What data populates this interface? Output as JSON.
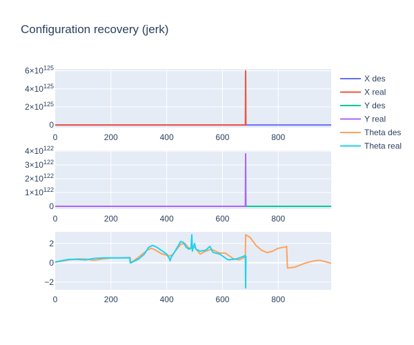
{
  "chart_data": {
    "title": "Configuration recovery (jerk)",
    "legend": {
      "placement": "right",
      "entries": [
        {
          "name": "X des",
          "color": "#636efa"
        },
        {
          "name": "X real",
          "color": "#ef553b"
        },
        {
          "name": "Y des",
          "color": "#00cc96"
        },
        {
          "name": "Y real",
          "color": "#ab63fa"
        },
        {
          "name": "Theta des",
          "color": "#ffa15a"
        },
        {
          "name": "Theta real",
          "color": "#19d3f3"
        }
      ]
    },
    "subplots": [
      {
        "type": "line",
        "xlim": [
          0,
          990
        ],
        "ylim": [
          -3e+124,
          6.2e+125
        ],
        "xticks": [
          0,
          200,
          400,
          600,
          800
        ],
        "yticks": [
          {
            "value": 0,
            "base": "0",
            "exp": ""
          },
          {
            "value": 2e+125,
            "base": "2×10",
            "exp": "125"
          },
          {
            "value": 4e+125,
            "base": "4×10",
            "exp": "125"
          },
          {
            "value": 6e+125,
            "base": "6×10",
            "exp": "125"
          }
        ],
        "grid": true,
        "series": [
          {
            "name": "X des",
            "color": "#636efa",
            "x": [
              0,
              990
            ],
            "y": [
              0,
              0
            ]
          },
          {
            "name": "X real",
            "color": "#ef553b",
            "x": [
              0,
              682,
              683,
              684
            ],
            "y": [
              0,
              0,
              6e+125,
              0
            ]
          }
        ]
      },
      {
        "type": "line",
        "xlim": [
          0,
          990
        ],
        "ylim": [
          -2e+121,
          4.05e+122
        ],
        "xticks": [
          0,
          200,
          400,
          600,
          800
        ],
        "yticks": [
          {
            "value": 0,
            "base": "0",
            "exp": ""
          },
          {
            "value": 1e+122,
            "base": "1×10",
            "exp": "122"
          },
          {
            "value": 2e+122,
            "base": "2×10",
            "exp": "122"
          },
          {
            "value": 3e+122,
            "base": "3×10",
            "exp": "122"
          },
          {
            "value": 4e+122,
            "base": "4×10",
            "exp": "122"
          }
        ],
        "grid": true,
        "series": [
          {
            "name": "Y des",
            "color": "#00cc96",
            "x": [
              0,
              990
            ],
            "y": [
              0,
              0
            ]
          },
          {
            "name": "Y real",
            "color": "#ab63fa",
            "x": [
              0,
              682,
              683,
              684
            ],
            "y": [
              0,
              0,
              3.8e+122,
              0
            ]
          }
        ]
      },
      {
        "type": "line",
        "xlim": [
          0,
          990
        ],
        "ylim": [
          -2.8,
          3.2
        ],
        "xticks": [
          0,
          200,
          400,
          600,
          800
        ],
        "yticks": [
          {
            "value": -2,
            "base": "−2",
            "exp": ""
          },
          {
            "value": 0,
            "base": "0",
            "exp": ""
          },
          {
            "value": 2,
            "base": "2",
            "exp": ""
          }
        ],
        "grid": true,
        "series": [
          {
            "name": "Theta des",
            "color": "#ffa15a",
            "x": [
              0,
              20,
              50,
              80,
              110,
              140,
              170,
              200,
              230,
              268,
              272,
              300,
              330,
              345,
              360,
              380,
              410,
              420,
              450,
              465,
              480,
              500,
              520,
              540,
              560,
              575,
              590,
              610,
              640,
              660,
              682,
              683,
              700,
              720,
              740,
              760,
              780,
              800,
              828,
              830,
              833,
              860,
              900,
              930,
              950,
              970,
              990
            ],
            "y": [
              0.1,
              0.15,
              0.3,
              0.4,
              0.38,
              0.25,
              0.4,
              0.5,
              0.5,
              0.55,
              0.0,
              0.6,
              1.3,
              1.5,
              1.3,
              0.95,
              0.7,
              0.8,
              1.9,
              2.0,
              1.5,
              1.6,
              0.9,
              1.2,
              1.4,
              1.2,
              1.0,
              1.0,
              0.4,
              0.3,
              0.6,
              2.9,
              2.6,
              1.8,
              1.3,
              1.05,
              1.2,
              1.5,
              1.65,
              1.7,
              -0.55,
              -0.45,
              0.0,
              0.2,
              0.25,
              0.1,
              -0.05
            ]
          },
          {
            "name": "Theta real",
            "color": "#19d3f3",
            "x": [
              0,
              20,
              50,
              80,
              110,
              140,
              170,
              200,
              230,
              268,
              269,
              272,
              300,
              320,
              335,
              350,
              365,
              380,
              400,
              410,
              412,
              415,
              430,
              450,
              460,
              470,
              480,
              487,
              490,
              492,
              495,
              500,
              505,
              520,
              540,
              555,
              565,
              575,
              590,
              620,
              650,
              670,
              682,
              683,
              684
            ],
            "y": [
              0.05,
              0.2,
              0.35,
              0.35,
              0.3,
              0.45,
              0.5,
              0.5,
              0.5,
              0.5,
              0.0,
              0.0,
              0.4,
              0.9,
              1.6,
              1.8,
              1.6,
              1.3,
              0.9,
              0.4,
              0.2,
              0.5,
              1.2,
              2.2,
              2.1,
              1.6,
              1.4,
              1.5,
              2.9,
              1.2,
              1.6,
              2.0,
              1.4,
              1.2,
              1.3,
              1.7,
              1.1,
              1.0,
              0.9,
              0.3,
              0.4,
              0.6,
              0.75,
              -2.6,
              0.7
            ]
          }
        ]
      }
    ]
  }
}
